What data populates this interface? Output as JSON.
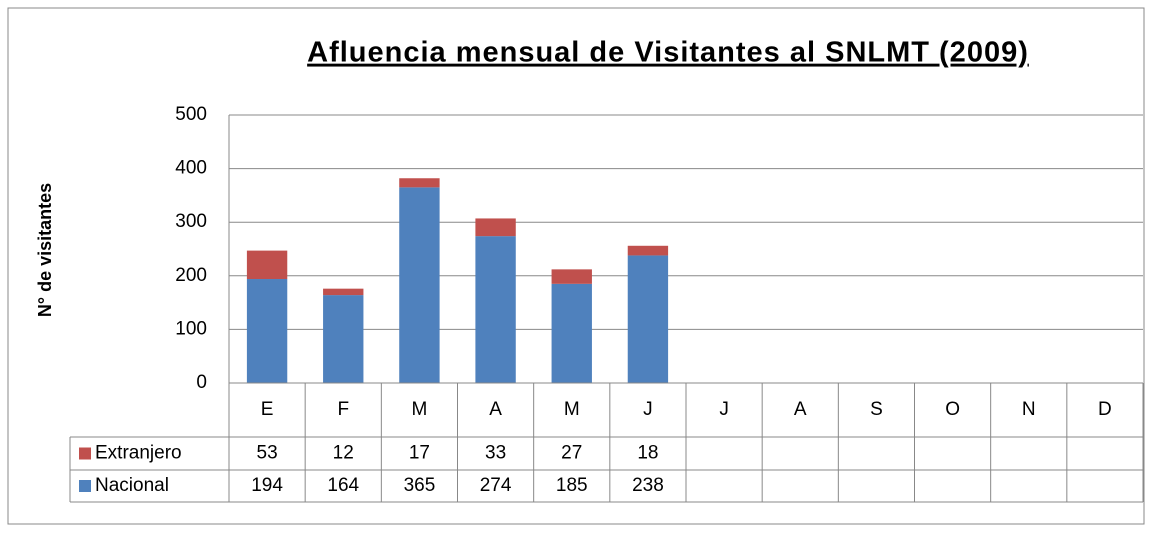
{
  "chart_data": {
    "type": "bar",
    "stacked": true,
    "title": "Afluencia mensual de Visitantes al SNLMT (2009)",
    "y_label": "N° de visitantes",
    "categories": [
      "E",
      "F",
      "M",
      "A",
      "M",
      "J",
      "J",
      "A",
      "S",
      "O",
      "N",
      "D"
    ],
    "series": [
      {
        "name": "Nacional",
        "color": "#4f81bd",
        "values": [
          194,
          164,
          365,
          274,
          185,
          238,
          null,
          null,
          null,
          null,
          null,
          null
        ]
      },
      {
        "name": "Extranjero",
        "color": "#c0504d",
        "values": [
          53,
          12,
          17,
          33,
          27,
          18,
          null,
          null,
          null,
          null,
          null,
          null
        ]
      }
    ],
    "ylim": [
      0,
      500
    ],
    "yticks": [
      0,
      100,
      200,
      300,
      400,
      500
    ],
    "grid": true,
    "data_table": true
  }
}
